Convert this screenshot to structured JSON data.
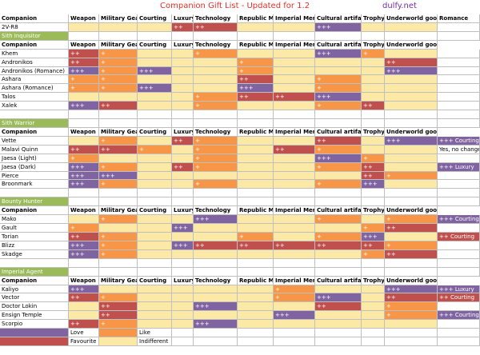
{
  "title": "Companion Gift List - Updated for 1.2",
  "site": "dulfy.net",
  "columns": [
    "Companion",
    "Weapon",
    "Military Gear",
    "Courting",
    "Luxury",
    "Technology",
    "Republic Mem",
    "Imperial Mem",
    "Cultural artifact",
    "Trophy",
    "Underworld good",
    "Romance"
  ],
  "top_row": {
    "name": "2V-R8",
    "cells": [
      null,
      null,
      null,
      "++",
      "++",
      null,
      null,
      "+++",
      null,
      null
    ]
  },
  "sections": [
    {
      "name": "Sith Inquisitor",
      "rows": [
        {
          "name": "Khem",
          "cells": [
            "++",
            "+",
            null,
            null,
            "+",
            null,
            null,
            "+++",
            "+",
            null
          ]
        },
        {
          "name": "Andronikos",
          "cells": [
            "++",
            "+",
            null,
            null,
            null,
            "+",
            null,
            null,
            null,
            "++"
          ]
        },
        {
          "name": "Andronikos (Romance)",
          "cells": [
            "+++",
            "+",
            "+++",
            null,
            null,
            "+",
            null,
            null,
            null,
            "+++"
          ]
        },
        {
          "name": "Ashara",
          "cells": [
            "+",
            "+",
            null,
            null,
            null,
            "++",
            null,
            "+",
            null,
            null
          ]
        },
        {
          "name": "Ashara (Romance)",
          "cells": [
            "+",
            "+",
            "+++",
            null,
            null,
            "+++",
            null,
            "+",
            null,
            null
          ]
        },
        {
          "name": "Talos",
          "cells": [
            null,
            null,
            null,
            null,
            "+",
            "++",
            "++",
            "+++",
            null,
            null
          ]
        },
        {
          "name": "Xalek",
          "cells": [
            "+++",
            "++",
            null,
            null,
            "+",
            null,
            null,
            "+",
            "++",
            null
          ]
        }
      ]
    },
    {
      "name": "Sith Warrior",
      "rows": [
        {
          "name": "Vette",
          "cells": [
            null,
            "+",
            null,
            "++",
            "+",
            null,
            null,
            "++",
            null,
            "+++"
          ],
          "romance": "+++ Courting"
        },
        {
          "name": "Malavi Quinn",
          "cells": [
            "++",
            "++",
            "+",
            null,
            "+",
            null,
            "++",
            "+",
            null,
            null
          ],
          "romance": "Yes, no change"
        },
        {
          "name": "Jaesa (Light)",
          "cells": [
            "+",
            null,
            null,
            null,
            "+",
            null,
            null,
            "+++",
            "+",
            null
          ]
        },
        {
          "name": "Jaesa (Dark)",
          "cells": [
            "+++",
            "+",
            null,
            "++",
            "+",
            null,
            null,
            "+",
            "++",
            null
          ],
          "romance": "+++ Luxury"
        },
        {
          "name": "Pierce",
          "cells": [
            "+++",
            "+++",
            null,
            null,
            null,
            null,
            null,
            null,
            "++",
            "+"
          ]
        },
        {
          "name": "Broonmark",
          "cells": [
            "+++",
            "+",
            null,
            null,
            "+",
            null,
            null,
            "+",
            "+++",
            null
          ]
        }
      ]
    },
    {
      "name": "Bounty Hunter",
      "rows": [
        {
          "name": "Mako",
          "cells": [
            null,
            "+",
            null,
            null,
            "+++",
            null,
            null,
            "+",
            null,
            "+"
          ],
          "romance": "+++ Courting"
        },
        {
          "name": "Gault",
          "cells": [
            "+",
            null,
            null,
            "+++",
            null,
            null,
            null,
            null,
            "+",
            "++"
          ]
        },
        {
          "name": "Torian",
          "cells": [
            "++",
            "+",
            null,
            null,
            null,
            "+",
            null,
            "+",
            "+++",
            null
          ],
          "romance": "++ Courting"
        },
        {
          "name": "Blizz",
          "cells": [
            "+++",
            "+",
            null,
            "+++",
            "++",
            "++",
            "++",
            "++",
            "++",
            "+"
          ]
        },
        {
          "name": "Skadge",
          "cells": [
            "+++",
            "+",
            null,
            null,
            null,
            null,
            null,
            null,
            "+",
            "++"
          ]
        }
      ]
    },
    {
      "name": "Imperial Agent",
      "rows": [
        {
          "name": "Kaliyo",
          "cells": [
            "+++",
            null,
            null,
            null,
            null,
            null,
            "+",
            null,
            null,
            "+++"
          ],
          "romance": "+++ Luxury"
        },
        {
          "name": "Vector",
          "cells": [
            "++",
            "+",
            null,
            null,
            null,
            null,
            "+",
            "+++",
            null,
            "++"
          ],
          "romance": "++ Courting"
        },
        {
          "name": "Doctor Lokin",
          "cells": [
            null,
            "++",
            null,
            null,
            "+++",
            null,
            null,
            "++",
            null,
            "+"
          ]
        },
        {
          "name": "Ensign Temple",
          "cells": [
            null,
            "++",
            null,
            null,
            null,
            null,
            "+++",
            null,
            null,
            "+"
          ],
          "romance": "+++ Courting"
        },
        {
          "name": "Scorpio",
          "cells": [
            "++",
            "+",
            null,
            null,
            "+++",
            null,
            null,
            null,
            null,
            null
          ]
        }
      ]
    }
  ],
  "legend": [
    {
      "label": "Love",
      "color": "#8064a2"
    },
    {
      "label": "Like",
      "color": "#f79646"
    },
    {
      "label": "Favourite",
      "color": "#c0504d"
    },
    {
      "label": "Indifferent",
      "color": "#fde9a6"
    }
  ],
  "section_color": "#9bbb59"
}
